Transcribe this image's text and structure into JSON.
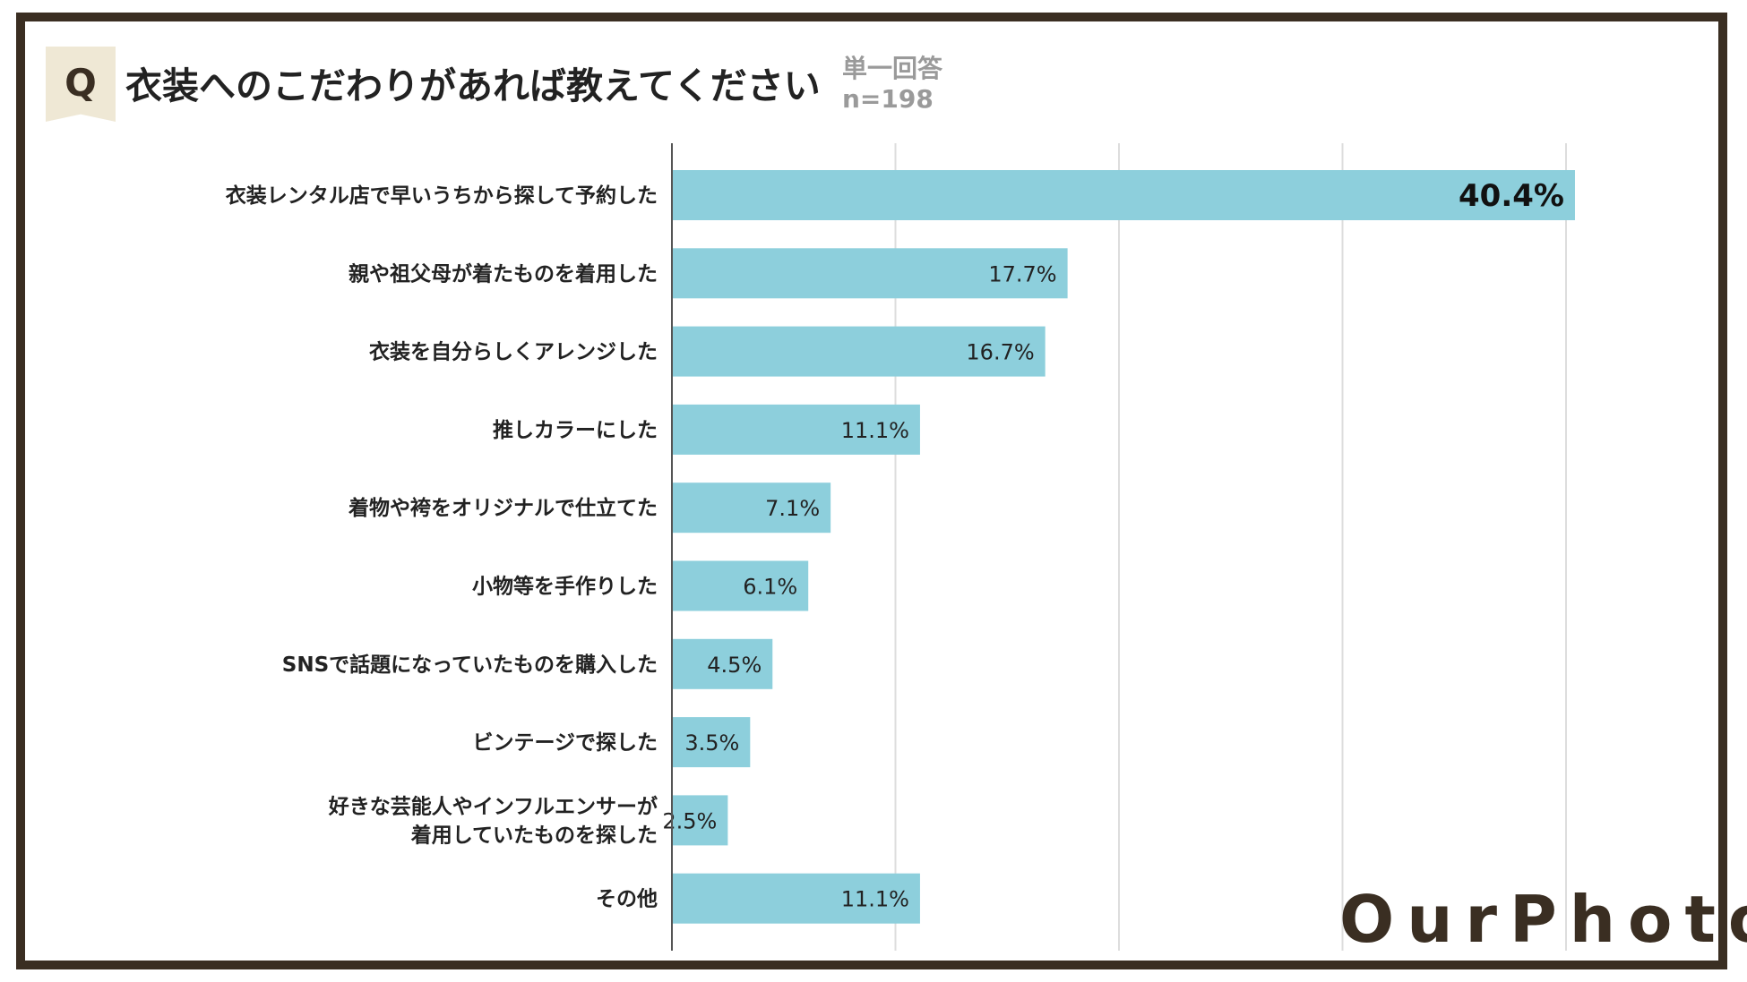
{
  "header": {
    "q_label": "Q",
    "title": "衣装へのこだわりがあれば教えてください",
    "answer_type": "単一回答",
    "sample_size": "n=198"
  },
  "brand": {
    "logo_text": "OurPhoto"
  },
  "colors": {
    "bar": "#8dcfdc",
    "frame": "#3a2e22",
    "grid": "#dddddd",
    "axis": "#555555"
  },
  "chart_data": {
    "type": "bar",
    "orientation": "horizontal",
    "title": "衣装へのこだわりがあれば教えてください",
    "xlim": [
      0,
      40
    ],
    "grid": true,
    "categories": [
      [
        "衣装レンタル店で早いうちから探して予約した"
      ],
      [
        "親や祖父母が着たものを着用した"
      ],
      [
        "衣装を自分らしくアレンジした"
      ],
      [
        "推しカラーにした"
      ],
      [
        "着物や袴をオリジナルで仕立てた"
      ],
      [
        "小物等を手作りした"
      ],
      [
        "SNSで話題になっていたものを購入した"
      ],
      [
        "ビンテージで探した"
      ],
      [
        "好きな芸能人やインフルエンサーが",
        "着用していたものを探した"
      ],
      [
        "その他"
      ]
    ],
    "values": [
      40.4,
      17.7,
      16.7,
      11.1,
      7.1,
      6.1,
      4.5,
      3.5,
      2.5,
      11.1
    ],
    "labels": [
      "40.4%",
      "17.7%",
      "16.7%",
      "11.1%",
      "7.1%",
      "6.1%",
      "4.5%",
      "3.5%",
      "2.5%",
      "11.1%"
    ],
    "highlight_index": 0
  }
}
